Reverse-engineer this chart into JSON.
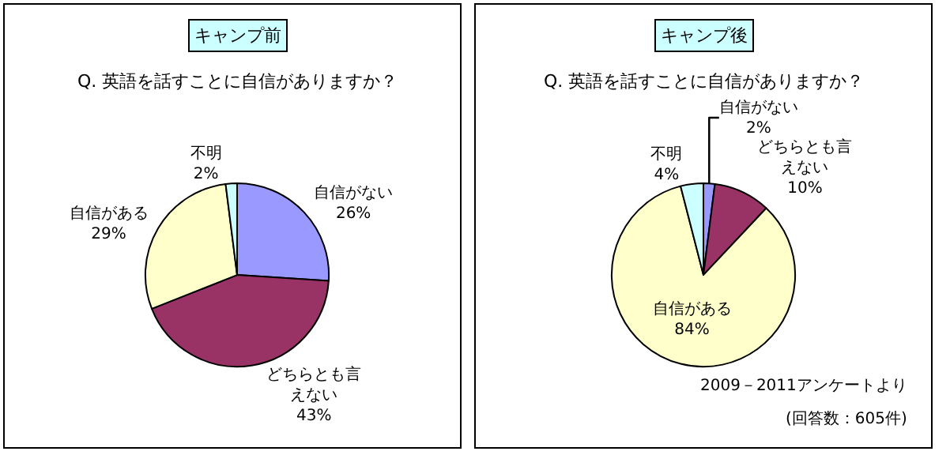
{
  "chart_data": [
    {
      "type": "pie",
      "title": "キャンプ前",
      "subtitle": "Q. 英語を話すことに自信がありますか？",
      "categories": [
        "自信がない",
        "どちらとも言えない",
        "自信がある",
        "不明"
      ],
      "values": [
        26,
        43,
        29,
        2
      ],
      "colors": [
        "#9999ff",
        "#993366",
        "#ffffcc",
        "#ccffff"
      ],
      "value_labels": [
        "26%",
        "43%",
        "29%",
        "2%"
      ]
    },
    {
      "type": "pie",
      "title": "キャンプ後",
      "subtitle": "Q. 英語を話すことに自信がありますか？",
      "categories": [
        "自信がない",
        "どちらとも言えない",
        "自信がある",
        "不明"
      ],
      "values": [
        2,
        10,
        84,
        4
      ],
      "colors": [
        "#9999ff",
        "#993366",
        "#ffffcc",
        "#ccffff"
      ],
      "value_labels": [
        "2%",
        "10%",
        "84%",
        "4%"
      ],
      "annotations": [
        "2009－2011アンケートより",
        "(回答数：605件)"
      ]
    }
  ]
}
